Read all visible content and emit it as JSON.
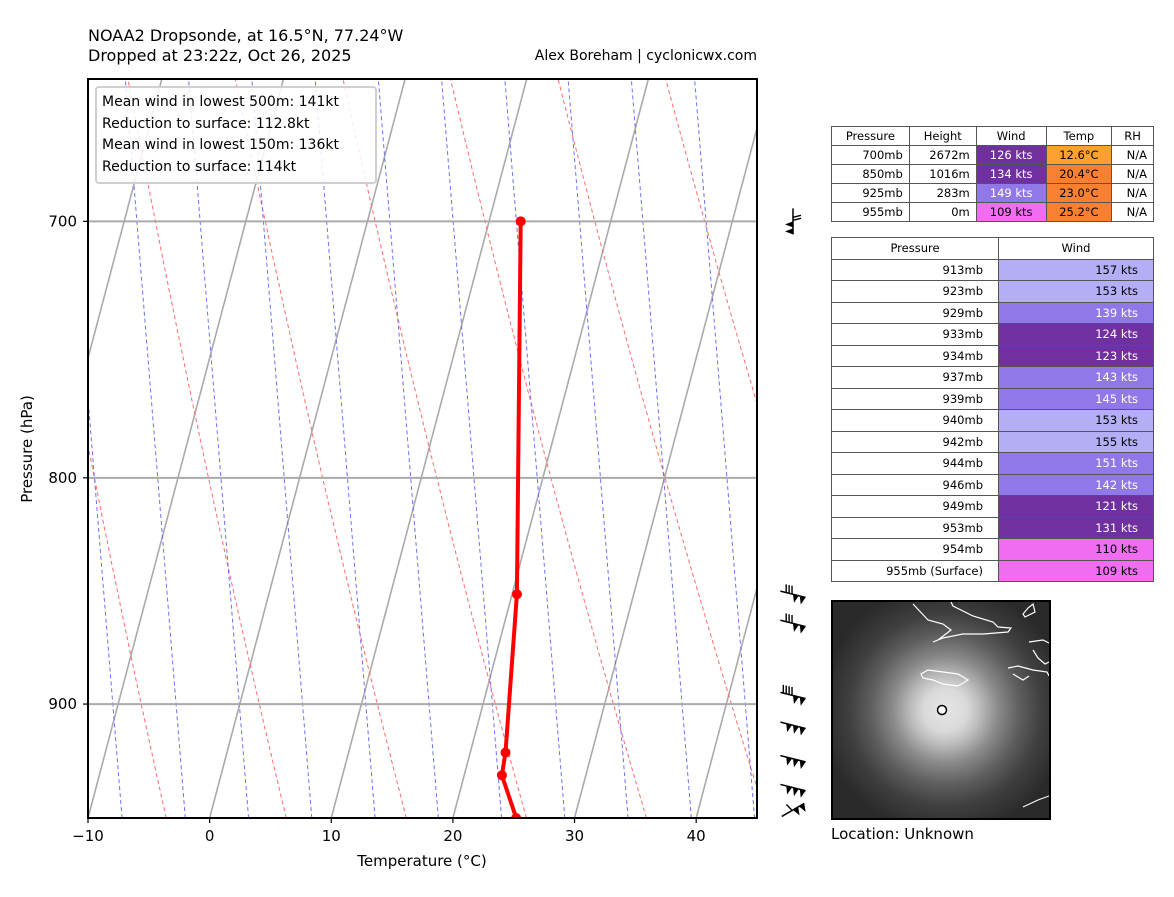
{
  "header": {
    "title_line1": "NOAA2 Dropsonde, at 16.5°N, 77.24°W",
    "title_line2": "Dropped at 23:22z, Oct 26, 2025",
    "credit": "Alex Boreham | cyclonicwx.com"
  },
  "legend": {
    "lines": [
      "Mean wind in lowest 500m: 141kt",
      "Reduction to surface: 112.8kt",
      "Mean wind in lowest 150m:  136kt",
      "Reduction to surface: 114kt"
    ]
  },
  "chart_data": {
    "type": "line",
    "title": "NOAA2 Dropsonde, at 16.5°N, 77.24°W",
    "xlabel": "Temperature (°C)",
    "ylabel": "Pressure (hPa)",
    "xlim": [
      -10,
      45
    ],
    "ylim": [
      955,
      650
    ],
    "x_ticks": [
      "−10",
      "0",
      "10",
      "20",
      "30",
      "40"
    ],
    "x_tick_values": [
      -10,
      0,
      10,
      20,
      30,
      40
    ],
    "y_ticks": [
      "700",
      "800",
      "900"
    ],
    "y_tick_values": [
      700,
      800,
      900
    ],
    "grid": true,
    "series": [
      {
        "name": "Temperature",
        "color": "#ff0000",
        "pressure": [
          700,
          850,
          923,
          934,
          955
        ],
        "temperature": [
          12.6,
          20.4,
          22.9,
          23.1,
          25.2
        ]
      }
    ],
    "wind_barbs": [
      {
        "pressure": 700,
        "speed_kt": 126
      },
      {
        "pressure": 850,
        "speed_kt": 134
      },
      {
        "pressure": 863,
        "speed_kt": 134
      },
      {
        "pressure": 896,
        "speed_kt": 149
      },
      {
        "pressure": 910,
        "speed_kt": 151
      },
      {
        "pressure": 926,
        "speed_kt": 153
      },
      {
        "pressure": 940,
        "speed_kt": 153
      },
      {
        "pressure": 951,
        "speed_kt": 110
      }
    ]
  },
  "summary_table": {
    "headers": [
      "Pressure",
      "Height",
      "Wind",
      "Temp",
      "RH"
    ],
    "rows": [
      {
        "pressure": "700mb",
        "height": "2672m",
        "wind": "126 kts",
        "temp": "12.6°C",
        "rh": "N/A",
        "wind_bg": "#7030a0",
        "wind_fg": "#ffffff",
        "temp_bg": "#ffa030"
      },
      {
        "pressure": "850mb",
        "height": "1016m",
        "wind": "134 kts",
        "temp": "20.4°C",
        "rh": "N/A",
        "wind_bg": "#7030a0",
        "wind_fg": "#ffffff",
        "temp_bg": "#f88030"
      },
      {
        "pressure": "925mb",
        "height": "283m",
        "wind": "149 kts",
        "temp": "23.0°C",
        "rh": "N/A",
        "wind_bg": "#9178e8",
        "wind_fg": "#ffffff",
        "temp_bg": "#f88030"
      },
      {
        "pressure": "955mb",
        "height": "0m",
        "wind": "109 kts",
        "temp": "25.2°C",
        "rh": "N/A",
        "wind_bg": "#f06cf0",
        "wind_fg": "#000000",
        "temp_bg": "#f88030"
      }
    ]
  },
  "levels_table": {
    "headers": [
      "Pressure",
      "Wind"
    ],
    "rows": [
      {
        "pressure": "913mb",
        "wind": "157 kts",
        "bg": "#b4aef6",
        "fg": "#000000"
      },
      {
        "pressure": "923mb",
        "wind": "153 kts",
        "bg": "#b4aef6",
        "fg": "#000000"
      },
      {
        "pressure": "929mb",
        "wind": "139 kts",
        "bg": "#9178e8",
        "fg": "#ffffff"
      },
      {
        "pressure": "933mb",
        "wind": "124 kts",
        "bg": "#7030a0",
        "fg": "#ffffff"
      },
      {
        "pressure": "934mb",
        "wind": "123 kts",
        "bg": "#7030a0",
        "fg": "#ffffff"
      },
      {
        "pressure": "937mb",
        "wind": "143 kts",
        "bg": "#9178e8",
        "fg": "#ffffff"
      },
      {
        "pressure": "939mb",
        "wind": "145 kts",
        "bg": "#9178e8",
        "fg": "#ffffff"
      },
      {
        "pressure": "940mb",
        "wind": "153 kts",
        "bg": "#b4aef6",
        "fg": "#000000"
      },
      {
        "pressure": "942mb",
        "wind": "155 kts",
        "bg": "#b4aef6",
        "fg": "#000000"
      },
      {
        "pressure": "944mb",
        "wind": "151 kts",
        "bg": "#9178e8",
        "fg": "#ffffff"
      },
      {
        "pressure": "946mb",
        "wind": "142 kts",
        "bg": "#9178e8",
        "fg": "#ffffff"
      },
      {
        "pressure": "949mb",
        "wind": "121 kts",
        "bg": "#7030a0",
        "fg": "#ffffff"
      },
      {
        "pressure": "953mb",
        "wind": "131 kts",
        "bg": "#7030a0",
        "fg": "#ffffff"
      },
      {
        "pressure": "954mb",
        "wind": "110 kts",
        "bg": "#f06cf0",
        "fg": "#000000"
      },
      {
        "pressure": "955mb (Surface)",
        "wind": "109 kts",
        "bg": "#f06cf0",
        "fg": "#000000"
      }
    ]
  },
  "satellite": {
    "location_label": "Location: Unknown"
  }
}
